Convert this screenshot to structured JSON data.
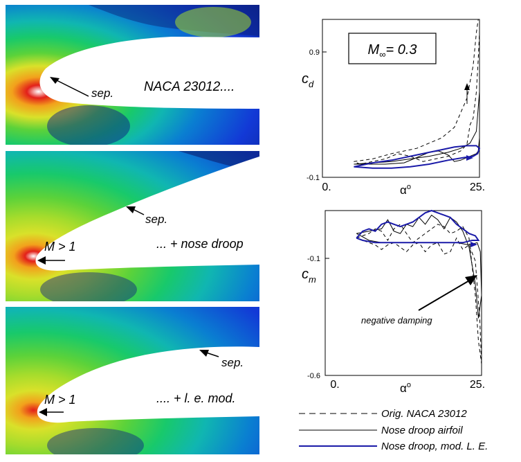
{
  "panels": [
    {
      "airfoil": "NACA 23012....",
      "sep": "sep."
    },
    {
      "airfoil": "... + nose droop",
      "sep": "sep.",
      "mach": "M > 1"
    },
    {
      "airfoil": ".... + l. e. mod.",
      "sep": "sep.",
      "mach": "M > 1"
    }
  ],
  "colors": {
    "orig": "#000000",
    "droop": "#000000",
    "mod": "#1a1aa8",
    "field": [
      "#0b1d86",
      "#1239d6",
      "#0a7fd1",
      "#10b6b1",
      "#18c96b",
      "#5bd23a",
      "#a6dc2c",
      "#d9e12a",
      "#f2a11c",
      "#e3201a",
      "#ffffff"
    ]
  },
  "chart_data": [
    {
      "type": "line",
      "id": "cd",
      "title": "M ∞ = 0.3",
      "title_main": "M",
      "title_sub": "∞",
      "title_rest": "= 0.3",
      "ylabel_main": "c",
      "ylabel_sub": "d",
      "xlabel_main": "α",
      "xlabel_sup": "o",
      "xlim": [
        0,
        25
      ],
      "ylim": [
        -0.1,
        1.1
      ],
      "xtick_labels": [
        "0.",
        "25."
      ],
      "ytick_labels": [
        "0.9",
        "-0.1"
      ],
      "yticks": [
        0.9,
        -0.1
      ],
      "series": [
        {
          "name": "Orig. NACA 23012",
          "style": "dashed",
          "x": [
            5,
            8,
            11,
            13,
            15,
            17,
            19,
            21,
            23,
            24,
            24.5,
            24.8,
            25,
            25,
            24.8,
            24.5,
            24,
            23.5,
            23,
            22,
            20,
            18,
            16,
            14,
            12,
            10,
            8,
            6,
            5
          ],
          "y": [
            0.02,
            0.04,
            0.08,
            0.1,
            0.12,
            0.16,
            0.2,
            0.28,
            0.5,
            0.75,
            1.0,
            1.1,
            1.15,
            1.0,
            0.8,
            0.55,
            0.35,
            0.3,
            0.15,
            0.1,
            0.06,
            0.04,
            0.02,
            0.06,
            0.08,
            0.04,
            0.02,
            0.0,
            0.02
          ]
        },
        {
          "name": "Nose droop airfoil",
          "style": "solid",
          "x": [
            5,
            8,
            11,
            14,
            17,
            20,
            22,
            23.5,
            24.5,
            25,
            25,
            24.8,
            24.5,
            23.5,
            22,
            21,
            20,
            18.5,
            17,
            15,
            13,
            10,
            7,
            5
          ],
          "y": [
            0.0,
            0.01,
            0.02,
            0.04,
            0.06,
            0.09,
            0.12,
            0.16,
            0.25,
            0.55,
            0.2,
            0.1,
            0.08,
            0.06,
            0.03,
            0.02,
            0.07,
            0.1,
            0.09,
            0.05,
            0.01,
            0.0,
            0.0,
            0.0
          ]
        },
        {
          "name": "Nose droop, mod. L. E.",
          "style": "solid",
          "x": [
            5,
            8,
            11,
            14,
            17,
            19,
            21,
            23,
            24.5,
            25,
            24.7,
            24,
            22.5,
            20,
            17,
            14,
            11,
            8,
            5
          ],
          "y": [
            -0.02,
            0.01,
            0.03,
            0.06,
            0.09,
            0.11,
            0.13,
            0.14,
            0.14,
            0.12,
            0.08,
            0.06,
            0.05,
            0.03,
            0.0,
            -0.02,
            -0.03,
            -0.03,
            -0.02
          ]
        }
      ]
    },
    {
      "type": "line",
      "id": "cm",
      "ylabel_main": "c",
      "ylabel_sub": "m",
      "xlabel_main": "α",
      "xlabel_sup": "o",
      "xlim": [
        0,
        25
      ],
      "ylim": [
        -0.6,
        0.12
      ],
      "xtick_labels": [
        "0.",
        "25."
      ],
      "ytick_labels": [
        "-0.1",
        "-0.6"
      ],
      "yticks": [
        -0.1,
        -0.6
      ],
      "annotation": "negative damping",
      "series": [
        {
          "name": "Orig. NACA 23012",
          "style": "dashed",
          "x": [
            5,
            6,
            7,
            8,
            9,
            10,
            11,
            12,
            13,
            14,
            15,
            16,
            17,
            18,
            19,
            20,
            21,
            22,
            23,
            24,
            24.5,
            25,
            24.7,
            24,
            23,
            22,
            21,
            20,
            19,
            18,
            17,
            16,
            15,
            14,
            13,
            12,
            11,
            10,
            9,
            8,
            7,
            6,
            5
          ],
          "y": [
            0.0,
            0.01,
            0.02,
            0.04,
            0.03,
            -0.01,
            0.04,
            0.06,
            0.02,
            -0.02,
            0.0,
            0.02,
            0.04,
            0.06,
            0.05,
            0.02,
            0.03,
            0.05,
            0.0,
            -0.25,
            -0.45,
            -0.55,
            -0.35,
            -0.1,
            -0.03,
            -0.05,
            0.0,
            -0.06,
            -0.07,
            -0.02,
            -0.03,
            -0.06,
            -0.02,
            -0.03,
            -0.06,
            -0.04,
            -0.02,
            -0.03,
            -0.05,
            -0.03,
            -0.02,
            -0.01,
            0.0
          ]
        },
        {
          "name": "Nose droop airfoil",
          "style": "solid",
          "x": [
            5,
            7,
            9,
            10,
            11,
            12,
            13,
            14,
            15,
            16,
            17,
            18,
            19,
            20,
            21,
            22,
            23,
            24,
            24.5,
            25,
            24.8,
            24.3,
            23,
            21,
            18,
            15,
            12,
            9,
            7,
            5
          ],
          "y": [
            0.02,
            0.03,
            0.04,
            0.08,
            0.03,
            0.02,
            0.06,
            0.05,
            0.09,
            0.06,
            0.1,
            0.08,
            0.04,
            0.09,
            0.07,
            0.03,
            -0.04,
            -0.2,
            -0.35,
            -0.25,
            -0.06,
            -0.02,
            -0.03,
            -0.02,
            -0.02,
            -0.02,
            -0.02,
            -0.02,
            -0.01,
            0.02
          ]
        },
        {
          "name": "Nose droop, mod. L. E.",
          "style": "solid",
          "x": [
            5,
            6,
            7,
            8,
            9,
            10,
            11,
            12,
            13,
            14,
            15,
            16,
            17,
            18,
            19,
            20,
            21,
            22,
            23,
            24,
            24.5,
            23.5,
            22,
            20,
            17,
            14,
            11,
            8,
            6,
            5
          ],
          "y": [
            0.0,
            0.03,
            0.04,
            0.03,
            0.06,
            0.07,
            0.06,
            0.05,
            0.06,
            0.07,
            0.09,
            0.11,
            0.12,
            0.11,
            0.1,
            0.09,
            0.06,
            0.04,
            0.02,
            0.01,
            -0.01,
            -0.01,
            -0.02,
            -0.02,
            -0.02,
            -0.02,
            -0.02,
            -0.02,
            -0.01,
            0.0
          ]
        }
      ]
    }
  ],
  "legend": [
    {
      "label": "Orig. NACA 23012",
      "style": "dashed"
    },
    {
      "label": "Nose droop airfoil",
      "style": "solid"
    },
    {
      "label": "Nose droop, mod. L. E.",
      "style": "blue"
    }
  ]
}
